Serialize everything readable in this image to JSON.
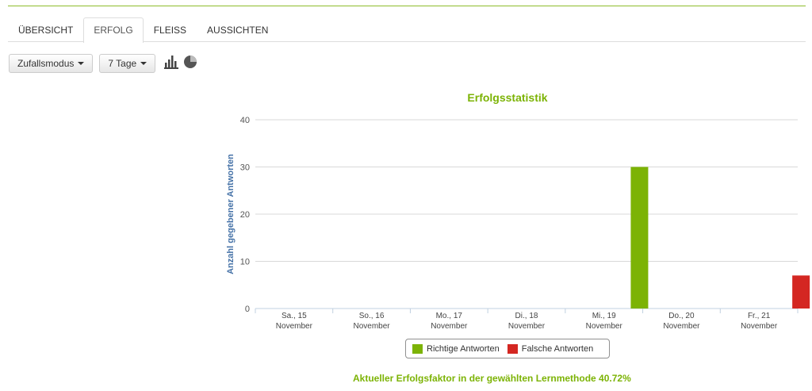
{
  "tabs": [
    {
      "label": "ÜBERSICHT",
      "active": false
    },
    {
      "label": "ERFOLG",
      "active": true
    },
    {
      "label": "FLEISS",
      "active": false
    },
    {
      "label": "AUSSICHTEN",
      "active": false
    }
  ],
  "toolbar": {
    "mode_dropdown": "Zufallsmodus",
    "range_dropdown": "7 Tage",
    "bar_icon": "bar-chart-icon",
    "pie_icon": "pie-chart-icon"
  },
  "colors": {
    "accent": "#8fbc2b",
    "correct": "#7cb305",
    "wrong": "#d42722",
    "axis_title": "#4572a7"
  },
  "chart_data": {
    "type": "bar",
    "title": "Erfolgsstatistik",
    "xlabel": "",
    "ylabel": "Anzahl gegebener Antworten",
    "ylim": [
      0,
      40
    ],
    "yticks": [
      0,
      10,
      20,
      30,
      40
    ],
    "grid": true,
    "legend_position": "bottom",
    "categories": [
      {
        "day": "Sa., 15",
        "month": "November"
      },
      {
        "day": "So., 16",
        "month": "November"
      },
      {
        "day": "Mo., 17",
        "month": "November"
      },
      {
        "day": "Di., 18",
        "month": "November"
      },
      {
        "day": "Mi., 19",
        "month": "November"
      },
      {
        "day": "Do., 20",
        "month": "November"
      },
      {
        "day": "Fr., 21",
        "month": "November"
      }
    ],
    "series": [
      {
        "name": "Richtige Antworten",
        "color": "#7cb305",
        "values": [
          0,
          0,
          0,
          0,
          0,
          30,
          0
        ]
      },
      {
        "name": "Falsche Antworten",
        "color": "#d42722",
        "values": [
          0,
          0,
          0,
          0,
          0,
          0,
          7
        ]
      }
    ]
  },
  "footer": {
    "text": "Aktueller Erfolgsfaktor in der gewählten Lernmethode 40.72%"
  }
}
